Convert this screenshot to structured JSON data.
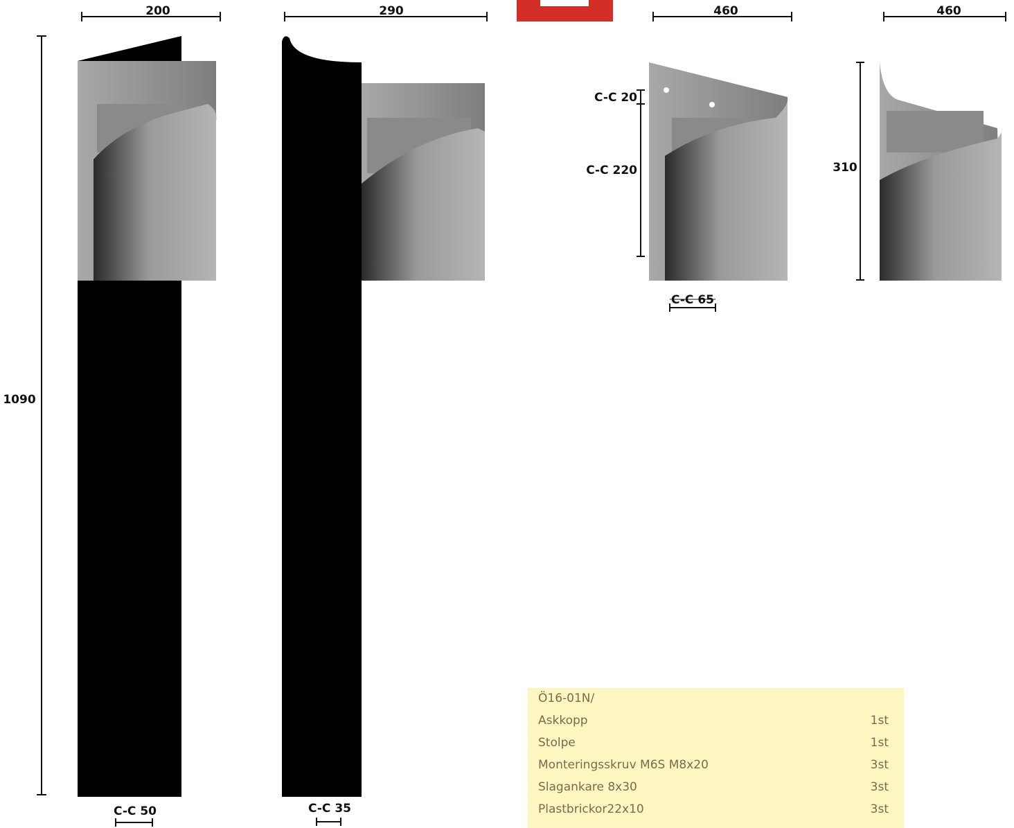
{
  "dimensions": {
    "post_1": {
      "width": "200",
      "height": "1090",
      "cc": "C-C 50"
    },
    "post_2": {
      "width": "290",
      "cc": "C-C 35"
    },
    "bin_front": {
      "width": "460",
      "cc_top": "C-C 20",
      "cc_middle": "C-C 220",
      "cc_bottom": "C-C 65"
    },
    "bin_side": {
      "width": "460",
      "height": "310"
    }
  },
  "parts_list": {
    "header": "Ö16-01N/",
    "rows": [
      [
        "Askkopp",
        "1st"
      ],
      [
        "Stolpe",
        "1st"
      ],
      [
        "Monteringsskruv M6S M8x20",
        "3st"
      ],
      [
        "Slagankare 8x30",
        "3st"
      ],
      [
        "Plastbrickor22x10",
        "3st"
      ]
    ]
  }
}
